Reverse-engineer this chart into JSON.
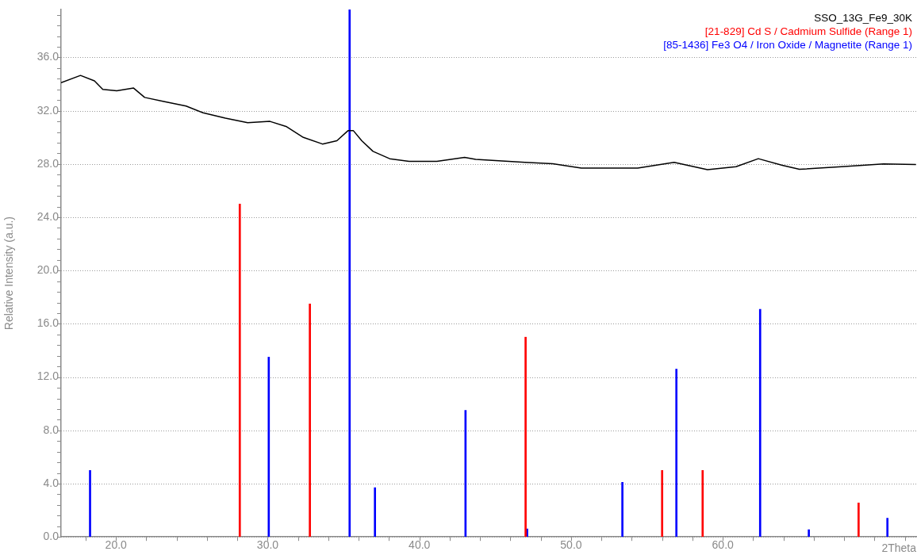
{
  "chart_data": {
    "type": "line",
    "ylabel": "Relative Intensity (a.u.)",
    "xlim": [
      16.38,
      72.8
    ],
    "ylim": [
      0,
      39.6
    ],
    "xticks": [
      {
        "value": 18,
        "label": null
      },
      {
        "value": 20,
        "label": "20.0"
      },
      {
        "value": 22,
        "label": null
      },
      {
        "value": 24,
        "label": null
      },
      {
        "value": 26,
        "label": null
      },
      {
        "value": 28,
        "label": null
      },
      {
        "value": 30,
        "label": "30.0"
      },
      {
        "value": 32,
        "label": null
      },
      {
        "value": 34,
        "label": null
      },
      {
        "value": 36,
        "label": null
      },
      {
        "value": 38,
        "label": null
      },
      {
        "value": 40,
        "label": "40.0"
      },
      {
        "value": 42,
        "label": null
      },
      {
        "value": 44,
        "label": null
      },
      {
        "value": 46,
        "label": null
      },
      {
        "value": 48,
        "label": null
      },
      {
        "value": 50,
        "label": "50.0"
      },
      {
        "value": 52,
        "label": null
      },
      {
        "value": 54,
        "label": null
      },
      {
        "value": 56,
        "label": null
      },
      {
        "value": 58,
        "label": null
      },
      {
        "value": 60,
        "label": "60.0"
      },
      {
        "value": 62,
        "label": null
      },
      {
        "value": 64,
        "label": null
      },
      {
        "value": 66,
        "label": null
      },
      {
        "value": 68,
        "label": null
      },
      {
        "value": 70,
        "label": null
      },
      {
        "value": 72,
        "label": null
      }
    ],
    "xlabel": "2Theta",
    "yticks": [
      {
        "value": 0,
        "label": "0.0"
      },
      {
        "value": 0.8,
        "label": null
      },
      {
        "value": 1.6,
        "label": null
      },
      {
        "value": 2.4,
        "label": null
      },
      {
        "value": 3.2,
        "label": null
      },
      {
        "value": 4,
        "label": "4.0"
      },
      {
        "value": 4.8,
        "label": null
      },
      {
        "value": 5.6,
        "label": null
      },
      {
        "value": 6.4,
        "label": null
      },
      {
        "value": 7.2,
        "label": null
      },
      {
        "value": 8,
        "label": "8.0"
      },
      {
        "value": 8.8,
        "label": null
      },
      {
        "value": 9.6,
        "label": null
      },
      {
        "value": 10.4,
        "label": null
      },
      {
        "value": 11.2,
        "label": null
      },
      {
        "value": 12,
        "label": "12.0"
      },
      {
        "value": 12.8,
        "label": null
      },
      {
        "value": 13.6,
        "label": null
      },
      {
        "value": 14.4,
        "label": null
      },
      {
        "value": 15.2,
        "label": null
      },
      {
        "value": 16,
        "label": "16.0"
      },
      {
        "value": 16.8,
        "label": null
      },
      {
        "value": 17.6,
        "label": null
      },
      {
        "value": 18.4,
        "label": null
      },
      {
        "value": 19.2,
        "label": null
      },
      {
        "value": 20,
        "label": "20.0"
      },
      {
        "value": 20.8,
        "label": null
      },
      {
        "value": 21.6,
        "label": null
      },
      {
        "value": 22.4,
        "label": null
      },
      {
        "value": 23.2,
        "label": null
      },
      {
        "value": 24,
        "label": "24.0"
      },
      {
        "value": 24.8,
        "label": null
      },
      {
        "value": 25.6,
        "label": null
      },
      {
        "value": 26.4,
        "label": null
      },
      {
        "value": 27.2,
        "label": null
      },
      {
        "value": 28,
        "label": "28.0"
      },
      {
        "value": 28.8,
        "label": null
      },
      {
        "value": 29.6,
        "label": null
      },
      {
        "value": 30.4,
        "label": null
      },
      {
        "value": 31.2,
        "label": null
      },
      {
        "value": 32,
        "label": "32.0"
      },
      {
        "value": 32.8,
        "label": null
      },
      {
        "value": 33.6,
        "label": null
      },
      {
        "value": 34.4,
        "label": null
      },
      {
        "value": 35.2,
        "label": null
      },
      {
        "value": 36,
        "label": "36.0"
      },
      {
        "value": 36.8,
        "label": null
      },
      {
        "value": 37.6,
        "label": null
      },
      {
        "value": 38.4,
        "label": null
      },
      {
        "value": 39.2,
        "label": null
      }
    ],
    "grid": "y",
    "legend": "top right",
    "marker": "none",
    "series": [
      {
        "name": "SSO_13G_Fe9_30K",
        "color": "#000000",
        "x": [
          16.38,
          17.66,
          18.58,
          19.13,
          20.05,
          21.16,
          21.89,
          23.15,
          24.62,
          25.74,
          27.21,
          28.68,
          30.15,
          31.25,
          32.35,
          33.61,
          34.56,
          35.29,
          35.65,
          36.2,
          36.94,
          38.04,
          39.32,
          41.15,
          42.98,
          43.71,
          46.96,
          48.79,
          50.67,
          54.39,
          56.79,
          58.99,
          60.87,
          62.34,
          63.92,
          65.05,
          67.82,
          70.59,
          72.73
        ],
        "values": [
          34.1,
          34.65,
          34.24,
          33.6,
          33.5,
          33.7,
          33.0,
          32.7,
          32.35,
          31.85,
          31.45,
          31.1,
          31.2,
          30.8,
          30.0,
          29.5,
          29.75,
          30.5,
          30.5,
          29.75,
          28.95,
          28.4,
          28.2,
          28.2,
          28.5,
          28.35,
          28.13,
          28.02,
          27.7,
          27.7,
          28.13,
          27.57,
          27.8,
          28.4,
          27.9,
          27.6,
          27.8,
          28.0,
          27.96
        ]
      },
      {
        "name": "[21-829] Cd S / Cadmium Sulfide (Range 1)",
        "type": "bar",
        "color": "#ff0000",
        "x": [
          28.16,
          32.78,
          47.0,
          56.0,
          58.67,
          68.95
        ],
        "values": [
          25.0,
          17.5,
          15.0,
          5.0,
          5.0,
          2.55
        ]
      },
      {
        "name": "[85-1436] Fe3 O4 / Iron Oxide / Magnetite (Range 1)",
        "type": "bar",
        "color": "#0000ff",
        "x": [
          18.29,
          30.07,
          35.4,
          37.07,
          43.04,
          47.1,
          53.38,
          56.94,
          62.46,
          65.67,
          70.85
        ],
        "values": [
          5.0,
          13.5,
          39.6,
          3.7,
          9.5,
          0.6,
          4.1,
          12.6,
          17.1,
          0.55,
          1.4
        ]
      }
    ]
  }
}
